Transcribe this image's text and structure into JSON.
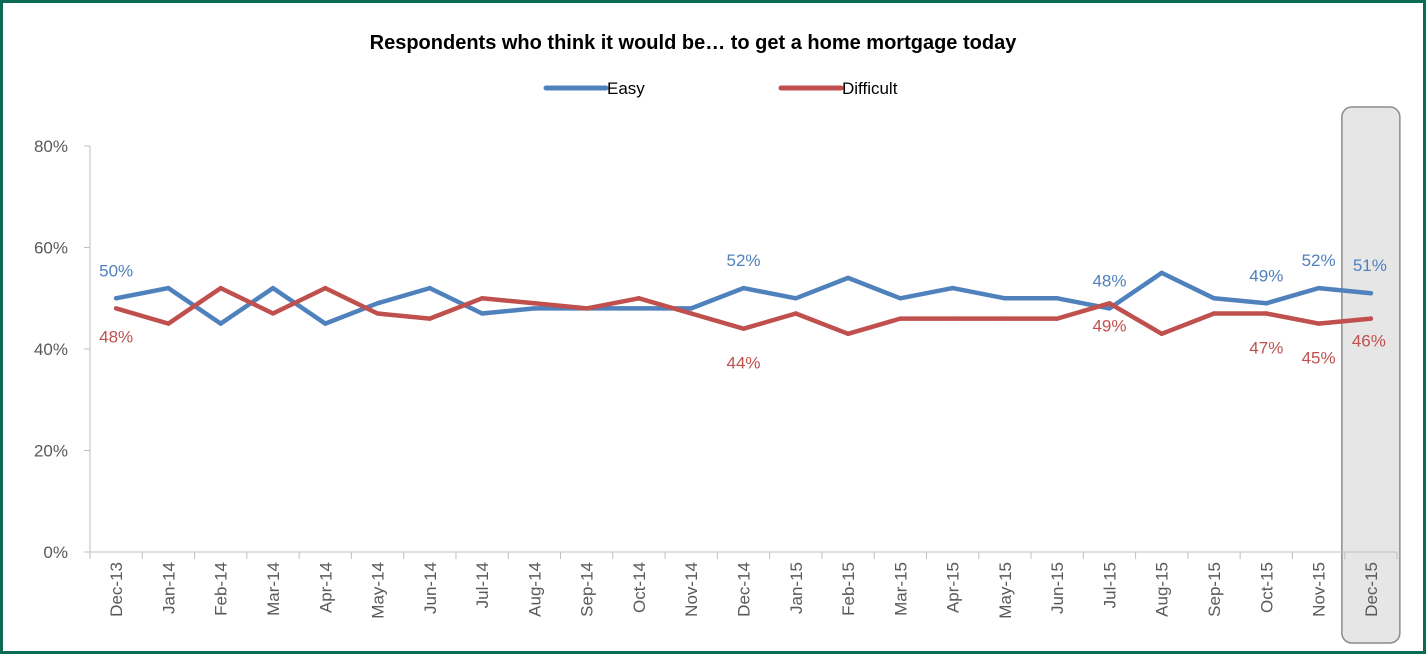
{
  "chart_data": {
    "type": "line",
    "title": "Respondents who think it would be… to get a home mortgage today",
    "categories": [
      "Dec-13",
      "Jan-14",
      "Feb-14",
      "Mar-14",
      "Apr-14",
      "May-14",
      "Jun-14",
      "Jul-14",
      "Aug-14",
      "Sep-14",
      "Oct-14",
      "Nov-14",
      "Dec-14",
      "Jan-15",
      "Feb-15",
      "Mar-15",
      "Apr-15",
      "May-15",
      "Jun-15",
      "Jul-15",
      "Aug-15",
      "Sep-15",
      "Oct-15",
      "Nov-15",
      "Dec-15"
    ],
    "ylim": [
      0,
      80
    ],
    "yticks": [
      "0%",
      "20%",
      "40%",
      "60%",
      "80%"
    ],
    "ytick_values": [
      0,
      20,
      40,
      60,
      80
    ],
    "legend_position": "top",
    "highlighted_category": "Dec-15",
    "series": [
      {
        "name": "Easy",
        "color": "#4f81bd",
        "values": [
          50,
          52,
          45,
          52,
          45,
          49,
          52,
          47,
          48,
          48,
          48,
          48,
          52,
          50,
          54,
          50,
          52,
          50,
          50,
          48,
          55,
          50,
          49,
          52,
          51
        ],
        "labels": [
          {
            "index": 0,
            "text": "50%"
          },
          {
            "index": 12,
            "text": "52%"
          },
          {
            "index": 19,
            "text": "48%"
          },
          {
            "index": 22,
            "text": "49%"
          },
          {
            "index": 23,
            "text": "52%"
          },
          {
            "index": 24,
            "text": "51%"
          }
        ]
      },
      {
        "name": "Difficult",
        "color": "#c0504d",
        "values": [
          48,
          45,
          52,
          47,
          52,
          47,
          46,
          50,
          49,
          48,
          50,
          47,
          44,
          47,
          43,
          46,
          46,
          46,
          46,
          49,
          43,
          47,
          47,
          45,
          46
        ],
        "labels": [
          {
            "index": 0,
            "text": "48%"
          },
          {
            "index": 12,
            "text": "44%"
          },
          {
            "index": 19,
            "text": "49%"
          },
          {
            "index": 22,
            "text": "47%"
          },
          {
            "index": 23,
            "text": "45%"
          },
          {
            "index": 24,
            "text": "46%"
          }
        ]
      }
    ]
  }
}
